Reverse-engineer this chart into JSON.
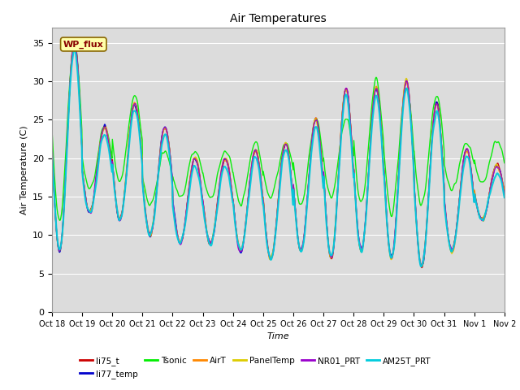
{
  "title": "Air Temperatures",
  "xlabel": "Time",
  "ylabel": "Air Temperature (C)",
  "ylim": [
    0,
    37
  ],
  "yticks": [
    0,
    5,
    10,
    15,
    20,
    25,
    30,
    35
  ],
  "bg_color": "#dcdcdc",
  "plot_bg": "#dcdcdc",
  "series": [
    {
      "name": "li75_t",
      "color": "#cc0000",
      "lw": 1.0
    },
    {
      "name": "li77_temp",
      "color": "#0000cc",
      "lw": 1.0
    },
    {
      "name": "Tsonic",
      "color": "#00ee00",
      "lw": 1.0
    },
    {
      "name": "AirT",
      "color": "#ff8800",
      "lw": 1.0
    },
    {
      "name": "PanelTemp",
      "color": "#ddcc00",
      "lw": 1.0
    },
    {
      "name": "NR01_PRT",
      "color": "#9900cc",
      "lw": 1.0
    },
    {
      "name": "AM25T_PRT",
      "color": "#00ccdd",
      "lw": 1.5
    }
  ],
  "xtick_labels": [
    "Oct 18",
    "Oct 19",
    "Oct 20",
    "Oct 21",
    "Oct 22",
    "Oct 23",
    "Oct 24",
    "Oct 25",
    "Oct 26",
    "Oct 27",
    "Oct 28",
    "Oct 29",
    "Oct 30",
    "Oct 31",
    "Nov 1",
    "Nov 2"
  ],
  "annotation_text": "WP_flux",
  "annotation_color": "#880000",
  "annotation_bg": "#ffffaa",
  "annotation_border": "#886600"
}
